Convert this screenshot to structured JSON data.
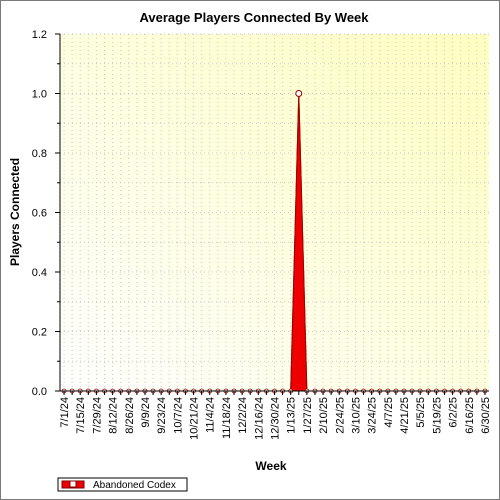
{
  "chart_data": {
    "type": "area",
    "title": "Average Players Connected By Week",
    "xlabel": "Week",
    "ylabel": "Players Connected",
    "ylim": [
      0,
      1.2
    ],
    "yticks": [
      "0.0",
      "0.2",
      "0.4",
      "0.6",
      "0.8",
      "1.0",
      "1.2"
    ],
    "grid": true,
    "legend_position": "bottom-left",
    "x_tick_labels": [
      "7/1/24",
      "7/15/24",
      "7/29/24",
      "8/12/24",
      "8/26/24",
      "9/9/24",
      "9/23/24",
      "10/7/24",
      "10/21/24",
      "11/4/24",
      "11/18/24",
      "12/2/24",
      "12/16/24",
      "12/30/24",
      "1/13/25",
      "1/27/25",
      "2/10/25",
      "2/24/25",
      "3/10/25",
      "3/24/25",
      "4/7/25",
      "4/21/25",
      "5/5/25",
      "5/19/25",
      "6/2/25",
      "6/16/25",
      "6/30/25"
    ],
    "x": [
      "7/1/24",
      "7/8/24",
      "7/15/24",
      "7/22/24",
      "7/29/24",
      "8/5/24",
      "8/12/24",
      "8/19/24",
      "8/26/24",
      "9/2/24",
      "9/9/24",
      "9/16/24",
      "9/23/24",
      "9/30/24",
      "10/7/24",
      "10/14/24",
      "10/21/24",
      "10/28/24",
      "11/4/24",
      "11/11/24",
      "11/18/24",
      "11/25/24",
      "12/2/24",
      "12/9/24",
      "12/16/24",
      "12/23/24",
      "12/30/24",
      "1/6/25",
      "1/13/25",
      "1/20/25",
      "1/27/25",
      "2/3/25",
      "2/10/25",
      "2/17/25",
      "2/24/25",
      "3/3/25",
      "3/10/25",
      "3/17/25",
      "3/24/25",
      "3/31/25",
      "4/7/25",
      "4/14/25",
      "4/21/25",
      "4/28/25",
      "5/5/25",
      "5/12/25",
      "5/19/25",
      "5/26/25",
      "6/2/25",
      "6/9/25",
      "6/16/25",
      "6/23/25",
      "6/30/25"
    ],
    "series": [
      {
        "name": "Abandoned Codex",
        "color": "#ee0000",
        "values": [
          0,
          0,
          0,
          0,
          0,
          0,
          0,
          0,
          0,
          0,
          0,
          0,
          0,
          0,
          0,
          0,
          0,
          0,
          0,
          0,
          0,
          0,
          0,
          0,
          0,
          0,
          0,
          0,
          0,
          1,
          0,
          0,
          0,
          0,
          0,
          0,
          0,
          0,
          0,
          0,
          0,
          0,
          0,
          0,
          0,
          0,
          0,
          0,
          0,
          0,
          0,
          0,
          0
        ]
      }
    ]
  }
}
